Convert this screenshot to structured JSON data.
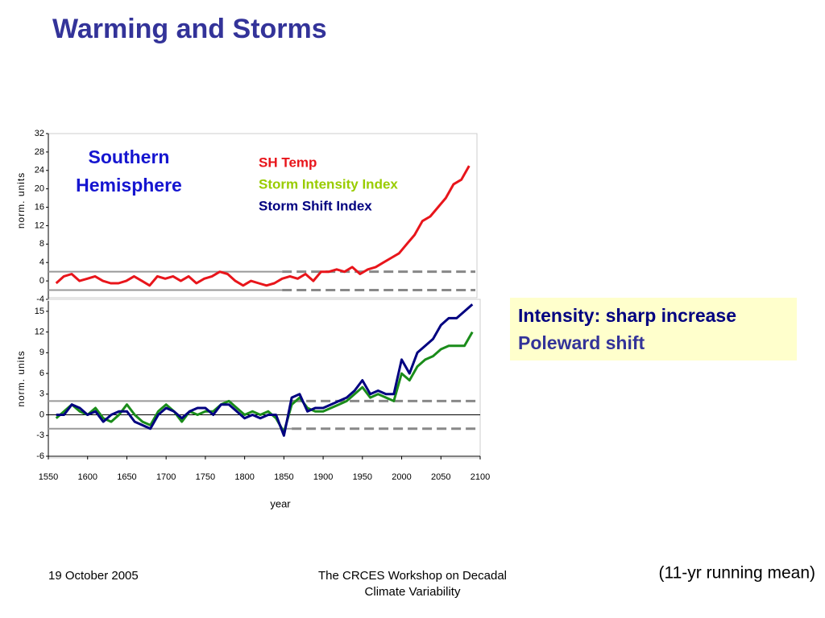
{
  "title": "Warming and Storms",
  "chart_data": [
    {
      "type": "line",
      "ylabel": "norm. units",
      "annotation": [
        "Southern",
        "Hemisphere"
      ],
      "x": [
        1560,
        1570,
        1580,
        1590,
        1600,
        1610,
        1620,
        1630,
        1640,
        1650,
        1660,
        1670,
        1680,
        1690,
        1700,
        1710,
        1720,
        1730,
        1740,
        1750,
        1760,
        1770,
        1780,
        1790,
        1800,
        1810,
        1820,
        1830,
        1840,
        1850,
        1860,
        1870,
        1880,
        1890,
        1900,
        1910,
        1920,
        1930,
        1940,
        1950,
        1960,
        1970,
        1980,
        1990,
        2000,
        2010,
        2020,
        2030,
        2040,
        2050,
        2060,
        2070,
        2080,
        2090
      ],
      "series": [
        {
          "name": "SH Temp",
          "color": "#e8151b",
          "values": [
            -0.5,
            1,
            1.5,
            0,
            0.5,
            1,
            0,
            -0.5,
            -0.5,
            0,
            1,
            0,
            -1,
            1,
            0.5,
            1,
            0,
            1,
            -0.5,
            0.5,
            1,
            2,
            1.5,
            0,
            -1,
            0,
            -0.5,
            -1,
            -0.5,
            0.5,
            1,
            0.5,
            1.5,
            0,
            2,
            2,
            2.5,
            2,
            3,
            1.5,
            2.5,
            3,
            4,
            5,
            6,
            8,
            10,
            13,
            14,
            16,
            18,
            21,
            22,
            25
          ]
        }
      ],
      "xlim": [
        1550,
        2100
      ],
      "ylim": [
        -4,
        32
      ],
      "yticks": [
        32,
        28,
        24,
        20,
        16,
        12,
        8,
        4,
        0,
        -4
      ],
      "ref_lines": [
        2,
        -2
      ],
      "ref_dash_from": 1850
    },
    {
      "type": "line",
      "xlabel": "year",
      "ylabel": "norm. units",
      "x": [
        1560,
        1570,
        1580,
        1590,
        1600,
        1610,
        1620,
        1630,
        1640,
        1650,
        1660,
        1670,
        1680,
        1690,
        1700,
        1710,
        1720,
        1730,
        1740,
        1750,
        1760,
        1770,
        1780,
        1790,
        1800,
        1810,
        1820,
        1830,
        1840,
        1850,
        1860,
        1870,
        1880,
        1890,
        1900,
        1910,
        1920,
        1930,
        1940,
        1950,
        1960,
        1970,
        1980,
        1990,
        2000,
        2010,
        2020,
        2030,
        2040,
        2050,
        2060,
        2070,
        2080,
        2090
      ],
      "series": [
        {
          "name": "Storm Intensity Index",
          "color": "#99cc00",
          "line_color": "#1a8c1a",
          "values": [
            -0.5,
            0.5,
            1.5,
            0.5,
            0,
            1,
            -0.5,
            -1,
            0,
            1.5,
            0,
            -1,
            -1.5,
            0.5,
            1.5,
            0.5,
            -1,
            0.5,
            0,
            0.5,
            0.5,
            1.5,
            2,
            1,
            0,
            0.5,
            0,
            0.5,
            -0.5,
            -2.5,
            1.5,
            2.5,
            1,
            0.5,
            0.5,
            1,
            1.5,
            2,
            3,
            4,
            2.5,
            3,
            2.5,
            2,
            6,
            5,
            7,
            8,
            8.5,
            9.5,
            10,
            10,
            10,
            12
          ]
        },
        {
          "name": "Storm Shift Index",
          "color": "#000080",
          "values": [
            0,
            0,
            1.5,
            1,
            0,
            0.5,
            -1,
            0,
            0.5,
            0.5,
            -1,
            -1.5,
            -2,
            0,
            1,
            0.5,
            -0.5,
            0.5,
            1,
            1,
            0,
            1.5,
            1.5,
            0.5,
            -0.5,
            0,
            -0.5,
            0,
            0,
            -3,
            2.5,
            3,
            0.5,
            1,
            1,
            1.5,
            2,
            2.5,
            3.5,
            5,
            3,
            3.5,
            3,
            3,
            8,
            6,
            9,
            10,
            11,
            13,
            14,
            14,
            15,
            16
          ]
        }
      ],
      "xlim": [
        1550,
        2100
      ],
      "ylim": [
        -6,
        16.5
      ],
      "xticks": [
        1550,
        1600,
        1650,
        1700,
        1750,
        1800,
        1850,
        1900,
        1950,
        2000,
        2050,
        2100
      ],
      "yticks": [
        15,
        12,
        9,
        6,
        3,
        0,
        -3,
        -6
      ],
      "ref_lines": [
        2,
        -2
      ],
      "ref_dash_from": 1860,
      "zero_line": true
    }
  ],
  "callout": [
    "Intensity: sharp increase",
    "Poleward shift"
  ],
  "footer": {
    "date": "19 October 2005",
    "event": [
      "The CRCES Workshop on Decadal",
      "Climate Variability"
    ],
    "note": "(11-yr running mean)"
  }
}
